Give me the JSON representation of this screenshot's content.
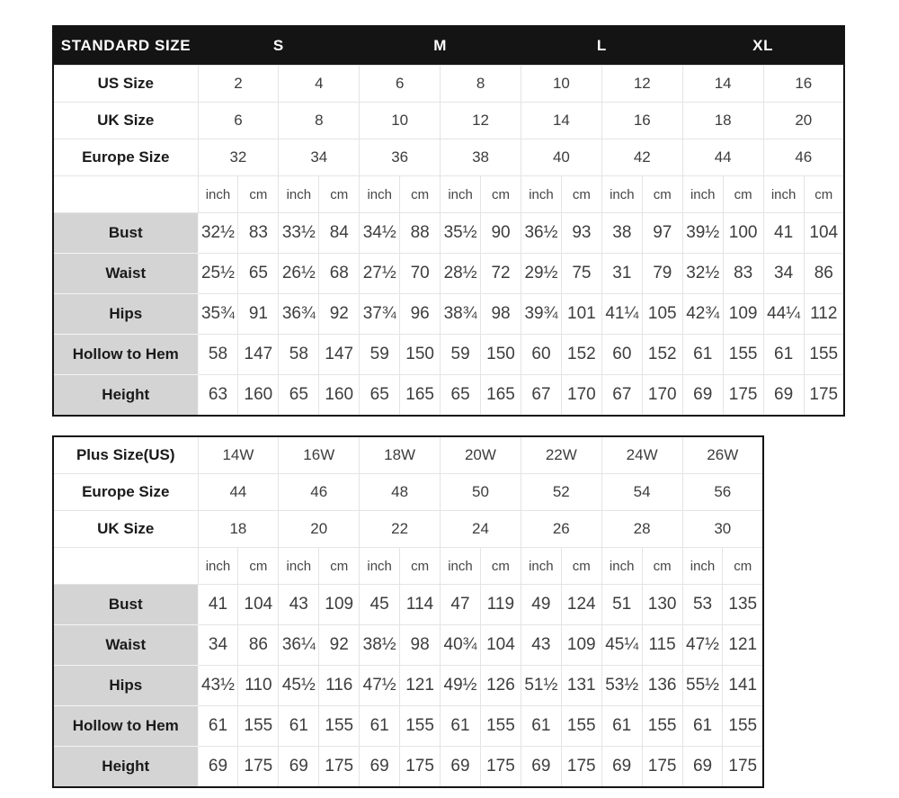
{
  "standard_table": {
    "header": {
      "title": "STANDARD SIZE",
      "groups": [
        "S",
        "M",
        "L",
        "XL"
      ]
    },
    "units": [
      "inch",
      "cm"
    ],
    "size_rows": [
      {
        "label": "US Size",
        "values": [
          "2",
          "4",
          "6",
          "8",
          "10",
          "12",
          "14",
          "16"
        ]
      },
      {
        "label": "UK Size",
        "values": [
          "6",
          "8",
          "10",
          "12",
          "14",
          "16",
          "18",
          "20"
        ]
      },
      {
        "label": "Europe Size",
        "values": [
          "32",
          "34",
          "36",
          "38",
          "40",
          "42",
          "44",
          "46"
        ]
      }
    ],
    "measure_rows": [
      {
        "label": "Bust",
        "values": [
          "32½",
          "83",
          "33½",
          "84",
          "34½",
          "88",
          "35½",
          "90",
          "36½",
          "93",
          "38",
          "97",
          "39½",
          "100",
          "41",
          "104"
        ]
      },
      {
        "label": "Waist",
        "values": [
          "25½",
          "65",
          "26½",
          "68",
          "27½",
          "70",
          "28½",
          "72",
          "29½",
          "75",
          "31",
          "79",
          "32½",
          "83",
          "34",
          "86"
        ]
      },
      {
        "label": "Hips",
        "values": [
          "35¾",
          "91",
          "36¾",
          "92",
          "37¾",
          "96",
          "38¾",
          "98",
          "39¾",
          "101",
          "41¼",
          "105",
          "42¾",
          "109",
          "44¼",
          "112"
        ]
      },
      {
        "label": "Hollow to Hem",
        "values": [
          "58",
          "147",
          "58",
          "147",
          "59",
          "150",
          "59",
          "150",
          "60",
          "152",
          "60",
          "152",
          "61",
          "155",
          "61",
          "155"
        ]
      },
      {
        "label": "Height",
        "values": [
          "63",
          "160",
          "65",
          "160",
          "65",
          "165",
          "65",
          "165",
          "67",
          "170",
          "67",
          "170",
          "69",
          "175",
          "69",
          "175"
        ]
      }
    ]
  },
  "plus_table": {
    "units": [
      "inch",
      "cm"
    ],
    "size_rows": [
      {
        "label": "Plus Size(US)",
        "values": [
          "14W",
          "16W",
          "18W",
          "20W",
          "22W",
          "24W",
          "26W"
        ]
      },
      {
        "label": "Europe Size",
        "values": [
          "44",
          "46",
          "48",
          "50",
          "52",
          "54",
          "56"
        ]
      },
      {
        "label": "UK Size",
        "values": [
          "18",
          "20",
          "22",
          "24",
          "26",
          "28",
          "30"
        ]
      }
    ],
    "measure_rows": [
      {
        "label": "Bust",
        "values": [
          "41",
          "104",
          "43",
          "109",
          "45",
          "114",
          "47",
          "119",
          "49",
          "124",
          "51",
          "130",
          "53",
          "135"
        ]
      },
      {
        "label": "Waist",
        "values": [
          "34",
          "86",
          "36¼",
          "92",
          "38½",
          "98",
          "40¾",
          "104",
          "43",
          "109",
          "45¼",
          "115",
          "47½",
          "121"
        ]
      },
      {
        "label": "Hips",
        "values": [
          "43½",
          "110",
          "45½",
          "116",
          "47½",
          "121",
          "49½",
          "126",
          "51½",
          "131",
          "53½",
          "136",
          "55½",
          "141"
        ]
      },
      {
        "label": "Hollow to Hem",
        "values": [
          "61",
          "155",
          "61",
          "155",
          "61",
          "155",
          "61",
          "155",
          "61",
          "155",
          "61",
          "155",
          "61",
          "155"
        ]
      },
      {
        "label": "Height",
        "values": [
          "69",
          "175",
          "69",
          "175",
          "69",
          "175",
          "69",
          "175",
          "69",
          "175",
          "69",
          "175",
          "69",
          "175"
        ]
      }
    ]
  }
}
